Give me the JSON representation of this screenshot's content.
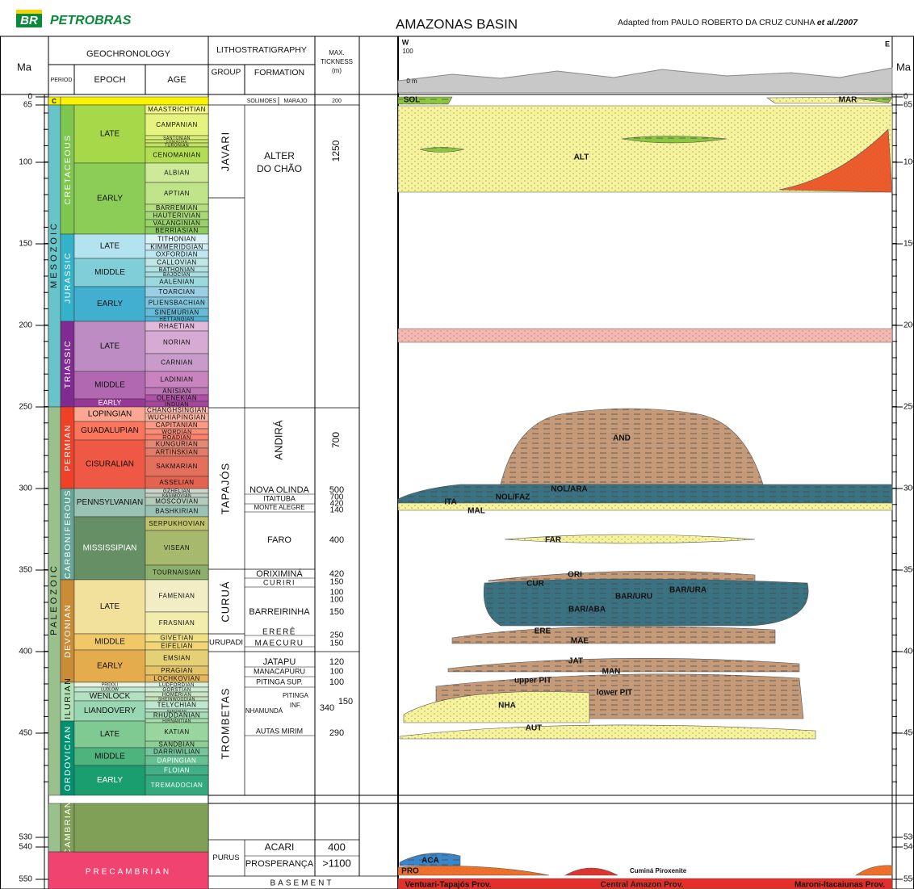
{
  "header": {
    "logo": "BR",
    "company": "PETROBRAS",
    "title": "AMAZONAS BASIN",
    "credit": "Adapted from PAULO ROBERTO DA CRUZ CUNHA",
    "credit_italic": "et al./2007"
  },
  "columns": {
    "ma": "Ma",
    "geochronology": "GEOCHRONOLOGY",
    "period": "PERIOD",
    "epoch": "EPOCH",
    "age": "AGE",
    "lithostratigraphy": "LITHOSTRATIGRAPHY",
    "group": "GROUP",
    "formation": "FORMATION",
    "thickness": [
      "MAX.",
      "TICKNESS",
      "(m)"
    ],
    "ma_right": "Ma"
  },
  "ma_ticks": [
    "0",
    "65",
    "100",
    "150",
    "200",
    "250",
    "300",
    "350",
    "400",
    "450",
    "530",
    "540",
    "550"
  ],
  "eras": [
    "C",
    "M E S O Z O I C",
    "P A L E O Z O I C"
  ],
  "periods": [
    "CRETACEOUS",
    "JURASSIC",
    "TRIASSIC",
    "PERMIAN",
    "CARBONIFEROUS",
    "DEVONIAN",
    "SILURIAN",
    "ORDOVICIAN",
    "CAMBRIAN",
    "PRECAMBRIAN"
  ],
  "epochs": [
    "LATE",
    "EARLY",
    "LATE",
    "MIDDLE",
    "EARLY",
    "LATE",
    "MIDDLE",
    "EARLY",
    "LOPINGIAN",
    "GUADALUPIAN",
    "CISURALIAN",
    "PENNSYLVANIAN",
    "MISSISSIPIAN",
    "LATE",
    "MIDDLE",
    "EARLY",
    "PRIDOLI",
    "LUDLOW",
    "WENLOCK",
    "LIANDOVERY",
    "LATE",
    "MIDDLE",
    "EARLY"
  ],
  "ages": [
    "MAASTRICHTIAN",
    "CAMPANIAN",
    "SANTONIAN",
    "CONIACIAN",
    "TURONIAN",
    "CENOMANIAN",
    "ALBIAN",
    "APTIAN",
    "BARREMIAN",
    "HAUTERIVIAN",
    "VALANGINIAN",
    "BERRIASIAN",
    "TITHONIAN",
    "KIMMERIDGIAN",
    "OXFORDIAN",
    "CALLOVIAN",
    "BATHONIAN",
    "BAJOCIAN",
    "AALENIAN",
    "TOARCIAN",
    "PLIENSBACHIAN",
    "SINEMURIAN",
    "HETTANGIAN",
    "RHAETIAN",
    "NORIAN",
    "CARNIAN",
    "LADINIAN",
    "ANISIAN",
    "OLENEKIAN",
    "INDUAN",
    "CHANGHSINGIAN",
    "WUCHIAPINGIAN",
    "CAPITANIAN",
    "WORDIAN",
    "ROADIAN",
    "KUNGURIAN",
    "ARTINSKIAN",
    "SAKMARIAN",
    "ASSELIAN",
    "GZHELIAN",
    "KASIMOVIAN",
    "MOSCOVIAN",
    "BASHKIRIAN",
    "SERPUKHOVIAN",
    "VISEAN",
    "TOURNAISIAN",
    "FAMENIAN",
    "FRASNIAN",
    "GIVETIAN",
    "EIFELIAN",
    "EMSIAN",
    "PRAGIAN",
    "LOCHKOVIAN",
    "LUDFORDIAN",
    "GORSTIAN",
    "HOMERIAN",
    "SHEINWOODIAN",
    "TELYCHIAN",
    "AERONIAN",
    "RHUDDANIAN",
    "HIRNANTIAN",
    "KATIAN",
    "SANDBIAN",
    "DARRIWILIAN",
    "DAPINGIAN",
    "FLOIAN",
    "TREMADOCIAN"
  ],
  "groups": [
    "JAVARI",
    "TAPAJÓS",
    "CURUÁ",
    "URUPADI",
    "TROMBETAS",
    "PURUS"
  ],
  "formations": [
    "SOLIMOES",
    "MARAJO",
    "ALTER",
    "DO CHÃO",
    "ANDIRÁ",
    "NOVA OLINDA",
    "ITAITUBA",
    "MONTE ALEGRE",
    "FARO",
    "ORIXIMINÁ",
    "CURIRI",
    "BARREIRINHA",
    "ERERÊ",
    "MAECURU",
    "JATAPU",
    "MANACAPURU",
    "PITINGA SUP.",
    "PITINGA",
    "INF.",
    "NHAMUNDÁ",
    "AUTAS MIRIM",
    "ACARI",
    "PROSPERANÇA"
  ],
  "thickness": [
    "200",
    "1250",
    "700",
    "500",
    "700",
    "420",
    "140",
    "400",
    "420",
    "150",
    "100",
    "100",
    "150",
    "250",
    "150",
    "120",
    "100",
    "100",
    "150",
    "340",
    "290",
    "400",
    ">1100"
  ],
  "basement": "BASEMENT",
  "section": {
    "west": "W",
    "east": "E",
    "elevation_top": "100",
    "elevation_base": "0 m",
    "units": [
      "SOL",
      "MAR",
      "ALT",
      "AND",
      "NOL/ARA",
      "NOL/FAZ",
      "ITA",
      "MAL",
      "FAR",
      "ORI",
      "CUR",
      "BAR/URU",
      "BAR/URA",
      "BAR/ABA",
      "ERE",
      "MAE",
      "JAT",
      "MAN",
      "upper PIT",
      "lower PIT",
      "NHA",
      "AUT",
      "ACA",
      "PRO"
    ],
    "intrusion": "Cuminá Piroxenite",
    "provinces": [
      "Ventuari-Tapajós Prov.",
      "Central Amazon Prov.",
      "Maroni-Itacaiunas Prov."
    ]
  }
}
